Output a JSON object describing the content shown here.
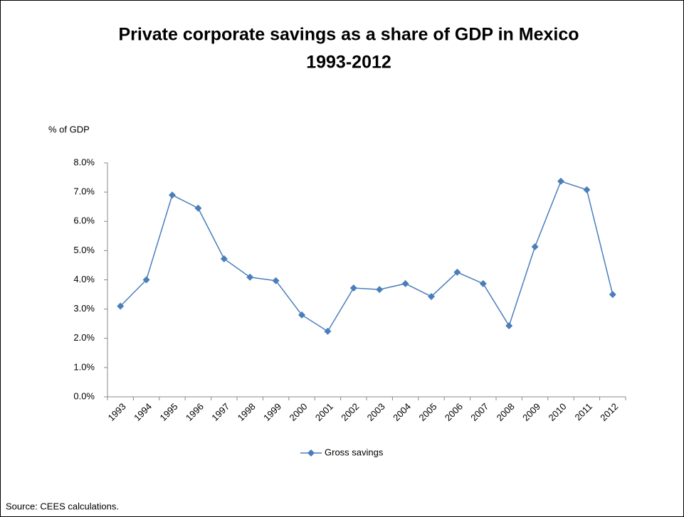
{
  "chart_data": {
    "type": "line",
    "title": "Private corporate savings as a share of GDP in Mexico",
    "subtitle": "1993-2012",
    "y_label": "% of GDP",
    "source": "Source: CEES calculations.",
    "categories": [
      "1993",
      "1994",
      "1995",
      "1996",
      "1997",
      "1998",
      "1999",
      "2000",
      "2001",
      "2002",
      "2003",
      "2004",
      "2005",
      "2006",
      "2007",
      "2008",
      "2009",
      "2010",
      "2011",
      "2012"
    ],
    "series": [
      {
        "name": "Gross savings",
        "color": "#4a7ebb",
        "values": [
          3.1,
          4.0,
          6.9,
          6.45,
          4.72,
          4.09,
          3.97,
          2.8,
          2.24,
          3.72,
          3.67,
          3.87,
          3.43,
          4.26,
          3.87,
          2.43,
          5.13,
          7.37,
          7.08,
          3.5
        ]
      }
    ],
    "ylim": [
      0,
      8
    ],
    "yticks": [
      {
        "value": 0,
        "label": "0.0%"
      },
      {
        "value": 1,
        "label": "1.0%"
      },
      {
        "value": 2,
        "label": "2.0%"
      },
      {
        "value": 3,
        "label": "3.0%"
      },
      {
        "value": 4,
        "label": "4.0%"
      },
      {
        "value": 5,
        "label": "5.0%"
      },
      {
        "value": 6,
        "label": "6.0%"
      },
      {
        "value": 7,
        "label": "7.0%"
      },
      {
        "value": 8,
        "label": "8.0%"
      }
    ],
    "grid": false,
    "legend": "bottom"
  }
}
